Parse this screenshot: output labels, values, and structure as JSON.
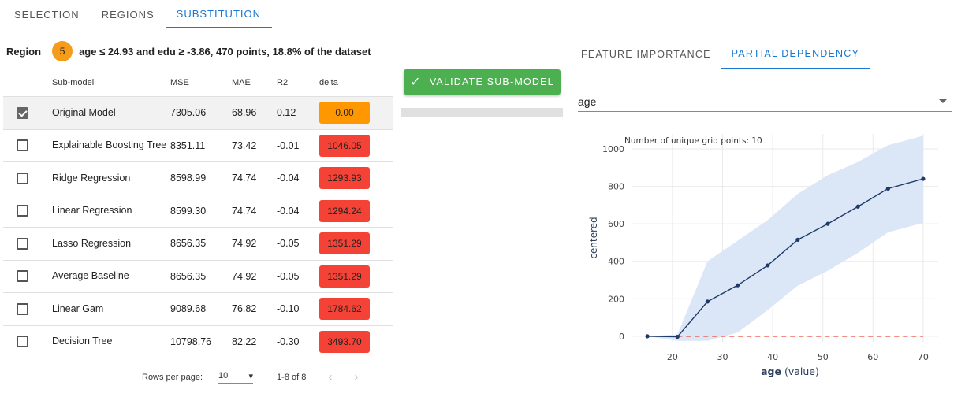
{
  "top_tabs": [
    {
      "label": "SELECTION"
    },
    {
      "label": "REGIONS"
    },
    {
      "label": "SUBSTITUTION"
    }
  ],
  "region": {
    "label": "Region",
    "number": "5",
    "rule": "age ≤ 24.93 and edu ≥ -3.86, 470 points, 18.8% of the dataset",
    "badge_color": "#f59c1a"
  },
  "table": {
    "headers": {
      "model": "Sub-model",
      "mse": "MSE",
      "mae": "MAE",
      "r2": "R2",
      "delta": "delta"
    },
    "rows": [
      {
        "name": "Original Model",
        "mse": "7305.06",
        "mae": "68.96",
        "r2": "0.12",
        "delta": "0.00",
        "delta_color": "#ff9800",
        "checked": true
      },
      {
        "name": "Explainable Boosting Tree",
        "mse": "8351.11",
        "mae": "73.42",
        "r2": "-0.01",
        "delta": "1046.05",
        "delta_color": "#f44336",
        "checked": false
      },
      {
        "name": "Ridge Regression",
        "mse": "8598.99",
        "mae": "74.74",
        "r2": "-0.04",
        "delta": "1293.93",
        "delta_color": "#f44336",
        "checked": false
      },
      {
        "name": "Linear Regression",
        "mse": "8599.30",
        "mae": "74.74",
        "r2": "-0.04",
        "delta": "1294.24",
        "delta_color": "#f44336",
        "checked": false
      },
      {
        "name": "Lasso Regression",
        "mse": "8656.35",
        "mae": "74.92",
        "r2": "-0.05",
        "delta": "1351.29",
        "delta_color": "#f44336",
        "checked": false
      },
      {
        "name": "Average Baseline",
        "mse": "8656.35",
        "mae": "74.92",
        "r2": "-0.05",
        "delta": "1351.29",
        "delta_color": "#f44336",
        "checked": false
      },
      {
        "name": "Linear Gam",
        "mse": "9089.68",
        "mae": "76.82",
        "r2": "-0.10",
        "delta": "1784.62",
        "delta_color": "#f44336",
        "checked": false
      },
      {
        "name": "Decision Tree",
        "mse": "10798.76",
        "mae": "82.22",
        "r2": "-0.30",
        "delta": "3493.70",
        "delta_color": "#f44336",
        "checked": false
      }
    ]
  },
  "pagination": {
    "rows_per_page_label": "Rows per page:",
    "rows_per_page": "10",
    "range": "1-8 of 8",
    "prev_icon": "chevron-left-icon",
    "next_icon": "chevron-right-icon"
  },
  "validate_button": {
    "label": "VALIDATE SUB-MODEL",
    "icon": "check-icon",
    "color": "#4caf50"
  },
  "right_tabs": [
    {
      "label": "FEATURE IMPORTANCE"
    },
    {
      "label": "PARTIAL DEPENDENCY"
    }
  ],
  "feature_select": {
    "value": "age",
    "icon": "caret-down-icon"
  },
  "chart_data": {
    "type": "line",
    "annotation": "Number of unique grid points: 10",
    "xlabel_bold": "age",
    "xlabel_rest": " (value)",
    "ylabel": "centered",
    "xlim": [
      12,
      73
    ],
    "ylim": [
      -30,
      1080
    ],
    "xticks": [
      20,
      30,
      40,
      50,
      60,
      70
    ],
    "yticks": [
      0,
      200,
      400,
      600,
      800,
      1000
    ],
    "x": [
      15,
      21,
      27,
      33,
      39,
      45,
      51,
      57,
      63,
      70
    ],
    "y": [
      0,
      -3,
      185,
      272,
      378,
      515,
      600,
      692,
      788,
      840
    ],
    "band_upper": [
      0,
      10,
      400,
      510,
      620,
      760,
      860,
      930,
      1020,
      1070
    ],
    "band_lower": [
      0,
      -25,
      -25,
      20,
      140,
      270,
      350,
      445,
      555,
      605
    ],
    "baseline": 0,
    "line_color": "#1f3a68",
    "band_color": "#dbe7f7",
    "baseline_color": "#e74c3c"
  }
}
